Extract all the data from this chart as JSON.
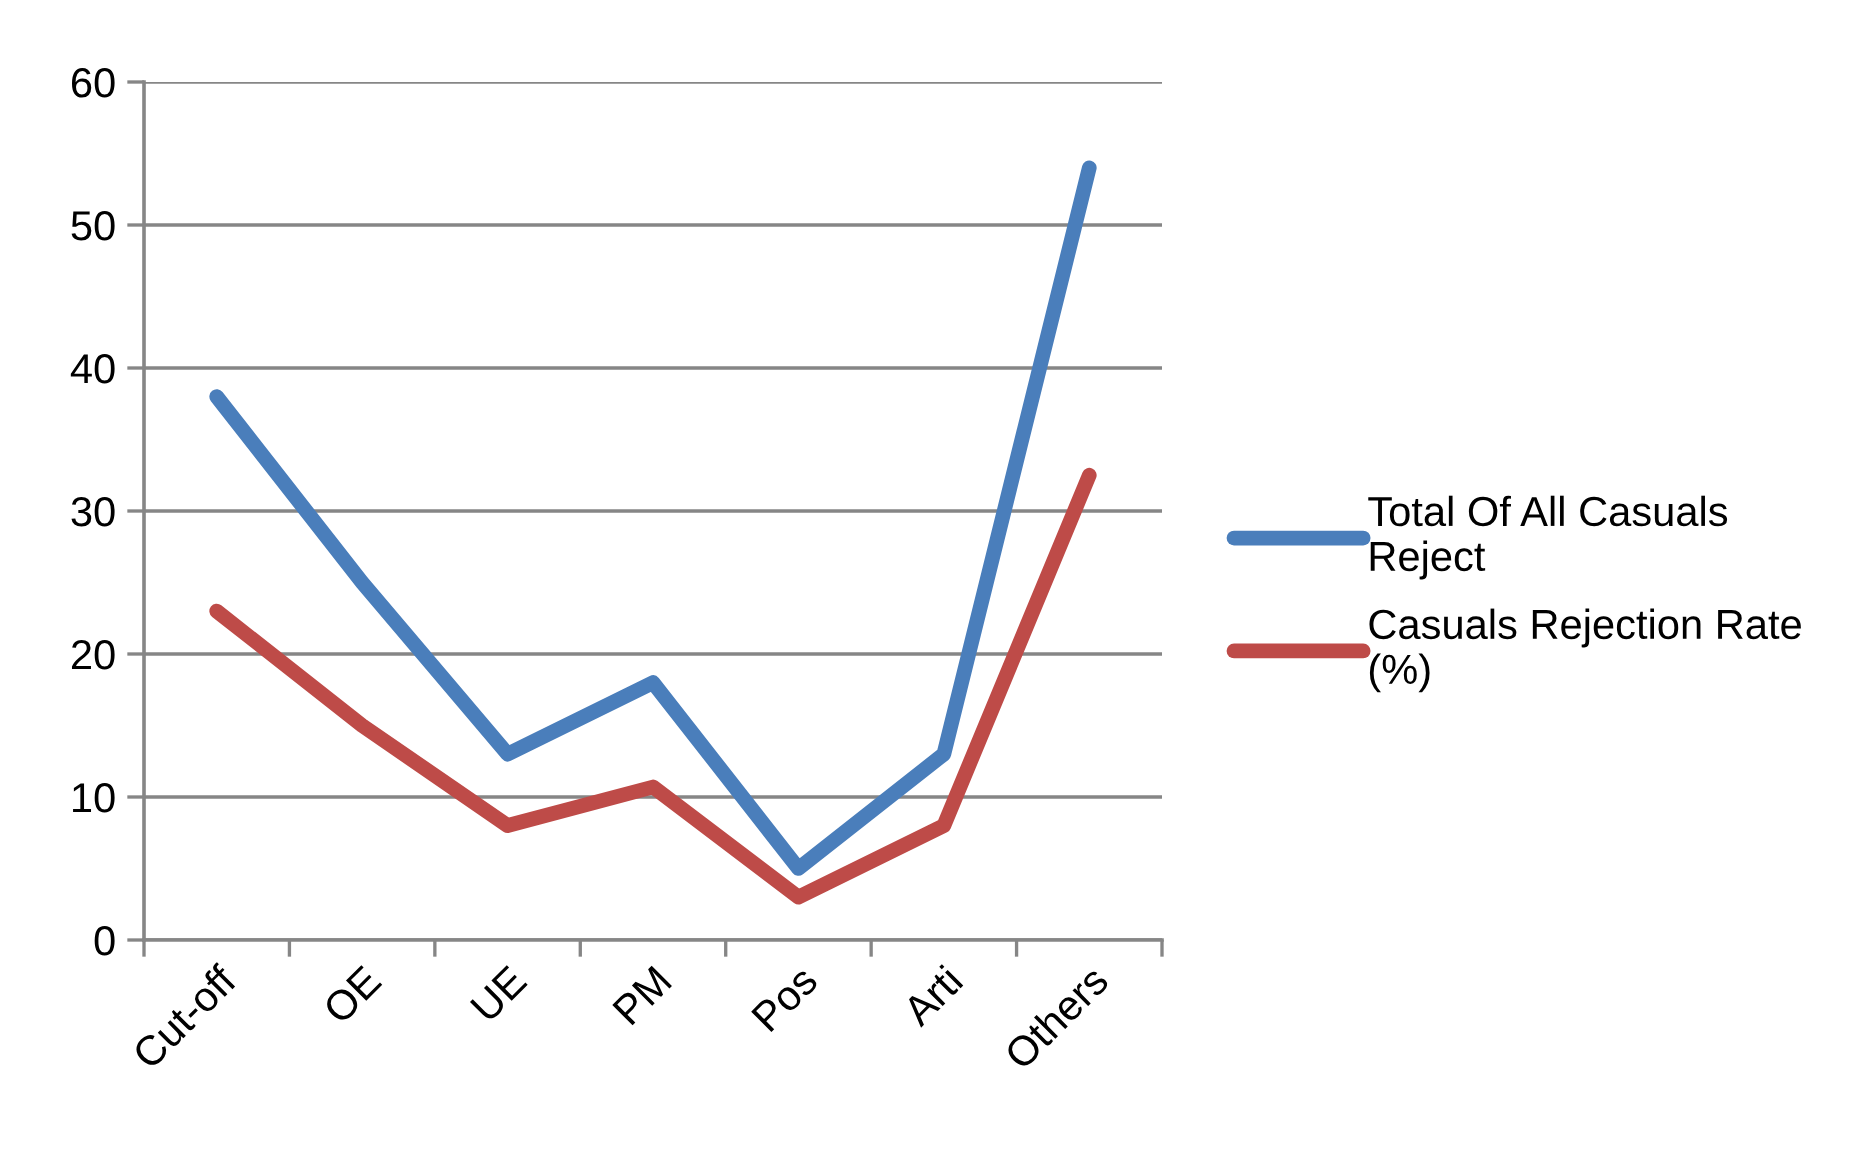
{
  "chart_data": {
    "type": "line",
    "categories": [
      "Cut-off",
      "OE",
      "UE",
      "PM",
      "Pos",
      "Arti",
      "Others"
    ],
    "series": [
      {
        "name": "Total Of All Casuals Reject",
        "color": "#4a7ebb",
        "values": [
          38,
          25,
          13,
          18,
          5,
          13,
          54
        ]
      },
      {
        "name": "Casuals Rejection Rate (%)",
        "color": "#be4b48",
        "values": [
          23,
          15,
          8,
          10.7,
          3,
          8,
          32.5
        ]
      }
    ],
    "ylim": [
      0,
      60
    ],
    "yticks": [
      0,
      10,
      20,
      30,
      40,
      50,
      60
    ],
    "grid": "y",
    "legend": "right",
    "marker": "none",
    "line_style": "solid"
  }
}
